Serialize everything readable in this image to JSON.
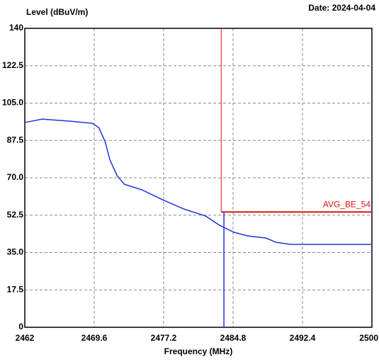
{
  "chart_data": {
    "type": "line",
    "title": "Date: 2024-04-04",
    "ylabel": "Level (dBuV/m)",
    "xlabel": "Frequency (MHz)",
    "xlim": [
      2462,
      2500
    ],
    "xticks": [
      2462,
      2469.6,
      2477.2,
      2484.8,
      2492.4,
      2500
    ],
    "ylim": [
      0,
      140
    ],
    "yticks": [
      0,
      17.5,
      {
        "value": 35,
        "label": "35.0"
      },
      52.5,
      {
        "value": 70,
        "label": "70.0"
      },
      87.5,
      {
        "value": 105,
        "label": "105.0"
      },
      122.5,
      140
    ],
    "grid": true,
    "series": [
      {
        "color": "#2233dd",
        "x": [
          2462,
          2463.9,
          2467.0,
          2469.4,
          2470.1,
          2470.8,
          2471.3,
          2472.1,
          2472.9,
          2474.8,
          2477.1,
          2479.4,
          2481.8,
          2483.3,
          2484.9,
          2486.4,
          2488.4,
          2489.5,
          2491.1,
          2500
        ],
        "values": [
          95.9,
          97.5,
          96.5,
          95.5,
          93.5,
          86.9,
          78.6,
          71,
          67,
          64.4,
          59.7,
          55.4,
          52.1,
          47.8,
          44.5,
          42.8,
          41.8,
          39.8,
          38.8,
          38.8
        ]
      }
    ],
    "limit": {
      "label": "AVG_BE_54",
      "value": 54,
      "x": [
        2483.5,
        2500
      ],
      "color": "#e01010"
    },
    "marker": {
      "x": 2483.8,
      "y": 54,
      "color": "#2233dd"
    }
  }
}
